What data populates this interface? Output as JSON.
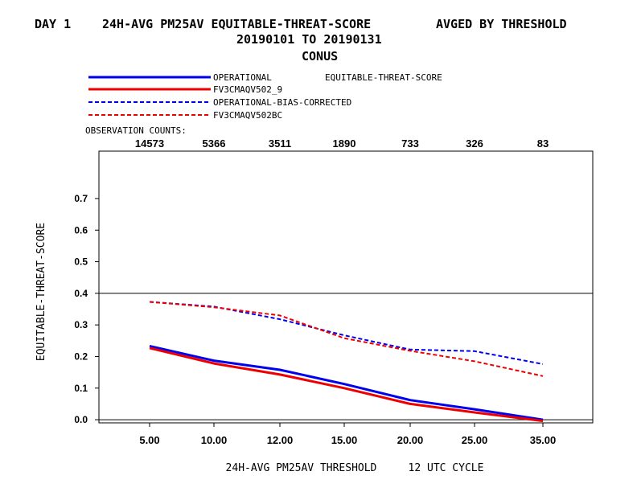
{
  "header": {
    "left": "DAY 1",
    "title": "24H-AVG PM25AV EQUITABLE-THREAT-SCORE",
    "right": "AVGED BY THRESHOLD",
    "date_range": "20190101 TO 20190131",
    "region": "CONUS"
  },
  "legend": {
    "metric_label": "EQUITABLE-THREAT-SCORE",
    "placement": "top-left, above plot"
  },
  "observation": {
    "label": "OBSERVATION COUNTS:",
    "counts": [
      "14573",
      "5366",
      "3511",
      "1890",
      "733",
      "326",
      "83"
    ]
  },
  "colors": {
    "blue": "#0000ee",
    "red": "#ee0000",
    "axis": "#000000"
  },
  "chart_data": {
    "type": "line",
    "xlabel": "24H-AVG PM25AV THRESHOLD     12 UTC CYCLE",
    "ylabel": "EQUITABLE-THREAT-SCORE",
    "categories": [
      "5.00",
      "10.00",
      "12.00",
      "15.00",
      "20.00",
      "25.00",
      "35.00"
    ],
    "ylim": [
      -0.01,
      0.85
    ],
    "yticks": [
      "0.0",
      "0.1",
      "0.2",
      "0.3",
      "0.4",
      "0.5",
      "0.6",
      "0.7"
    ],
    "reference_lines": [
      0.0,
      0.4
    ],
    "grid": false,
    "series": [
      {
        "name": "OPERATIONAL",
        "color": "#0000ee",
        "dash": "solid",
        "values": [
          0.233,
          0.187,
          0.158,
          0.113,
          0.062,
          0.033,
          0.0
        ]
      },
      {
        "name": "FV3CMAQV502_9",
        "color": "#ee0000",
        "dash": "solid",
        "values": [
          0.227,
          0.178,
          0.143,
          0.1,
          0.05,
          0.023,
          -0.004
        ]
      },
      {
        "name": "OPERATIONAL-BIAS-CORRECTED",
        "color": "#0000ee",
        "dash": "dashed",
        "values": [
          0.373,
          0.358,
          0.318,
          0.267,
          0.222,
          0.217,
          0.176
        ]
      },
      {
        "name": "FV3CMAQV502BC",
        "color": "#ee0000",
        "dash": "dashed",
        "values": [
          0.373,
          0.356,
          0.33,
          0.258,
          0.218,
          0.185,
          0.138
        ]
      }
    ]
  }
}
